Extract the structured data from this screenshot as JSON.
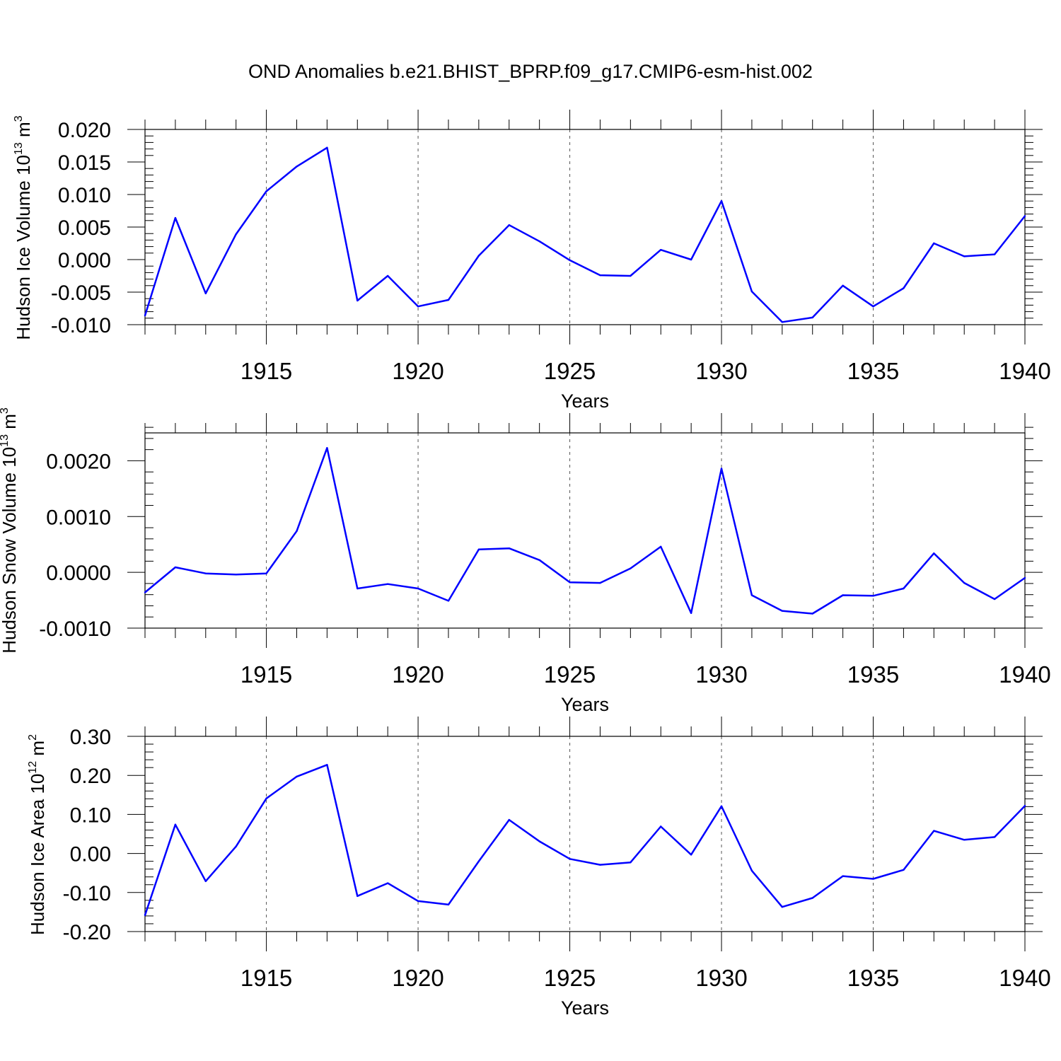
{
  "title": "OND Anomalies b.e21.BHIST_BPRP.f09_g17.CMIP6-esm-hist.002",
  "chart_data": [
    {
      "type": "line",
      "ylabel": "Hudson Ice Volume 10",
      "ylabel_exp": "13",
      "ylabel_unit": " m",
      "ylabel_unit_exp": "3",
      "xlabel": "Years",
      "xlim": [
        1911,
        1940
      ],
      "ylim": [
        -0.01,
        0.02
      ],
      "xticks": [
        1915,
        1920,
        1925,
        1930,
        1935,
        1940
      ],
      "yticks": [
        -0.01,
        -0.005,
        0.0,
        0.005,
        0.01,
        0.015,
        0.02
      ],
      "ytick_labels": [
        "-0.010",
        "-0.005",
        "0.000",
        "0.005",
        "0.010",
        "0.015",
        "0.020"
      ],
      "line_color": "#0000ff",
      "grid": "dashed vertical at major x ticks",
      "x": [
        1911,
        1912,
        1913,
        1914,
        1915,
        1916,
        1917,
        1918,
        1919,
        1920,
        1921,
        1922,
        1923,
        1924,
        1925,
        1926,
        1927,
        1928,
        1929,
        1930,
        1931,
        1932,
        1933,
        1934,
        1935,
        1936,
        1937,
        1938,
        1939,
        1940
      ],
      "values": [
        -0.0086,
        0.0064,
        -0.0052,
        0.0039,
        0.0105,
        0.0143,
        0.0172,
        -0.0063,
        -0.0025,
        -0.0072,
        -0.0062,
        0.0006,
        0.0053,
        0.0028,
        -0.0001,
        -0.0024,
        -0.0025,
        0.0015,
        0.0,
        0.009,
        -0.0049,
        -0.0096,
        -0.0089,
        -0.004,
        -0.0072,
        -0.0044,
        0.0025,
        0.0005,
        0.0008,
        0.0067
      ]
    },
    {
      "type": "line",
      "ylabel": "Hudson Snow Volume 10",
      "ylabel_exp": "13",
      "ylabel_unit": " m",
      "ylabel_unit_exp": "3",
      "xlabel": "Years",
      "xlim": [
        1911,
        1940
      ],
      "ylim": [
        -0.001,
        0.0025
      ],
      "xticks": [
        1915,
        1920,
        1925,
        1930,
        1935,
        1940
      ],
      "yticks": [
        -0.001,
        0.0,
        0.001,
        0.002
      ],
      "ytick_labels": [
        "-0.0010",
        "0.0000",
        "0.0010",
        "0.0020"
      ],
      "line_color": "#0000ff",
      "grid": "dashed vertical at major x ticks",
      "x": [
        1911,
        1912,
        1913,
        1914,
        1915,
        1916,
        1917,
        1918,
        1919,
        1920,
        1921,
        1922,
        1923,
        1924,
        1925,
        1926,
        1927,
        1928,
        1929,
        1930,
        1931,
        1932,
        1933,
        1934,
        1935,
        1936,
        1937,
        1938,
        1939,
        1940
      ],
      "values": [
        -0.00036,
        9e-05,
        -2e-05,
        -4e-05,
        -2e-05,
        0.00074,
        0.00223,
        -0.00029,
        -0.00021,
        -0.00029,
        -0.00051,
        0.00041,
        0.00043,
        0.00022,
        -0.00018,
        -0.00019,
        7e-05,
        0.00046,
        -0.00073,
        0.00186,
        -0.00041,
        -0.00069,
        -0.00074,
        -0.00041,
        -0.00042,
        -0.00029,
        0.00034,
        -0.00019,
        -0.00048,
        -0.0001
      ]
    },
    {
      "type": "line",
      "ylabel": "Hudson Ice Area 10",
      "ylabel_exp": "12",
      "ylabel_unit": " m",
      "ylabel_unit_exp": "2",
      "xlabel": "Years",
      "xlim": [
        1911,
        1940
      ],
      "ylim": [
        -0.2,
        0.3
      ],
      "xticks": [
        1915,
        1920,
        1925,
        1930,
        1935,
        1940
      ],
      "yticks": [
        -0.2,
        -0.1,
        0.0,
        0.1,
        0.2,
        0.3
      ],
      "ytick_labels": [
        "-0.20",
        "-0.10",
        "0.00",
        "0.10",
        "0.20",
        "0.30"
      ],
      "line_color": "#0000ff",
      "grid": "dashed vertical at major x ticks",
      "x": [
        1911,
        1912,
        1913,
        1914,
        1915,
        1916,
        1917,
        1918,
        1919,
        1920,
        1921,
        1922,
        1923,
        1924,
        1925,
        1926,
        1927,
        1928,
        1929,
        1930,
        1931,
        1932,
        1933,
        1934,
        1935,
        1936,
        1937,
        1938,
        1939,
        1940
      ],
      "values": [
        -0.158,
        0.074,
        -0.071,
        0.018,
        0.141,
        0.197,
        0.227,
        -0.109,
        -0.076,
        -0.122,
        -0.131,
        -0.02,
        0.086,
        0.031,
        -0.014,
        -0.029,
        -0.023,
        0.069,
        -0.003,
        0.121,
        -0.044,
        -0.137,
        -0.114,
        -0.058,
        -0.065,
        -0.042,
        0.058,
        0.035,
        0.042,
        0.122
      ]
    }
  ]
}
